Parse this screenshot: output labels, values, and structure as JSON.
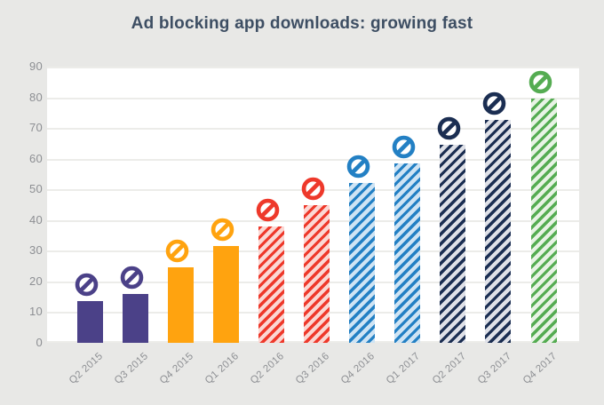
{
  "page": {
    "background_color": "#e8e8e6",
    "plot_background_color": "#ffffff",
    "gridline_color": "#ecece9",
    "axis_text_color": "#8d8f93",
    "title_color": "#3d4e63"
  },
  "chart_data": {
    "type": "bar",
    "title": "Ad blocking app downloads: growing fast",
    "xlabel": "",
    "ylabel": "",
    "ylim": [
      0,
      90
    ],
    "yticks": [
      0,
      10,
      20,
      30,
      40,
      50,
      60,
      70,
      80,
      90
    ],
    "grid": true,
    "legend": false,
    "marker_icon": "no-entry-icon",
    "categories": [
      "Q2 2015",
      "Q3 2015",
      "Q4 2015",
      "Q1 2016",
      "Q2 2016",
      "Q3 2016",
      "Q4 2016",
      "Q1 2017",
      "Q2 2017",
      "Q3 2017",
      "Q4 2017"
    ],
    "values": [
      13.5,
      16,
      24.5,
      31.5,
      38,
      45,
      52,
      58.5,
      64.5,
      72.5,
      79.5
    ],
    "bars": [
      {
        "category": "Q2 2015",
        "value": 13.5,
        "pattern": "solid",
        "color": "#4b4188",
        "tint": "#4b4188"
      },
      {
        "category": "Q3 2015",
        "value": 16,
        "pattern": "solid",
        "color": "#4b4188",
        "tint": "#4b4188"
      },
      {
        "category": "Q4 2015",
        "value": 24.5,
        "pattern": "solid",
        "color": "#ffa30f",
        "tint": "#ffa30f"
      },
      {
        "category": "Q1 2016",
        "value": 31.5,
        "pattern": "solid",
        "color": "#ffa30f",
        "tint": "#ffa30f"
      },
      {
        "category": "Q2 2016",
        "value": 38,
        "pattern": "diagonal-hatch",
        "color": "#ee392b",
        "tint": "#fbd8d4"
      },
      {
        "category": "Q3 2016",
        "value": 45,
        "pattern": "diagonal-hatch",
        "color": "#ee392b",
        "tint": "#fbd8d4"
      },
      {
        "category": "Q4 2016",
        "value": 52,
        "pattern": "diagonal-hatch",
        "color": "#2380c4",
        "tint": "#cfe4f4"
      },
      {
        "category": "Q1 2017",
        "value": 58.5,
        "pattern": "diagonal-hatch",
        "color": "#2380c4",
        "tint": "#cfe4f4"
      },
      {
        "category": "Q2 2017",
        "value": 64.5,
        "pattern": "diagonal-hatch",
        "color": "#1b2e52",
        "tint": "#dfe1e8"
      },
      {
        "category": "Q3 2017",
        "value": 72.5,
        "pattern": "diagonal-hatch",
        "color": "#1b2e52",
        "tint": "#dfe1e8"
      },
      {
        "category": "Q4 2017",
        "value": 79.5,
        "pattern": "diagonal-hatch",
        "color": "#55ac52",
        "tint": "#e8f3e5"
      }
    ]
  }
}
